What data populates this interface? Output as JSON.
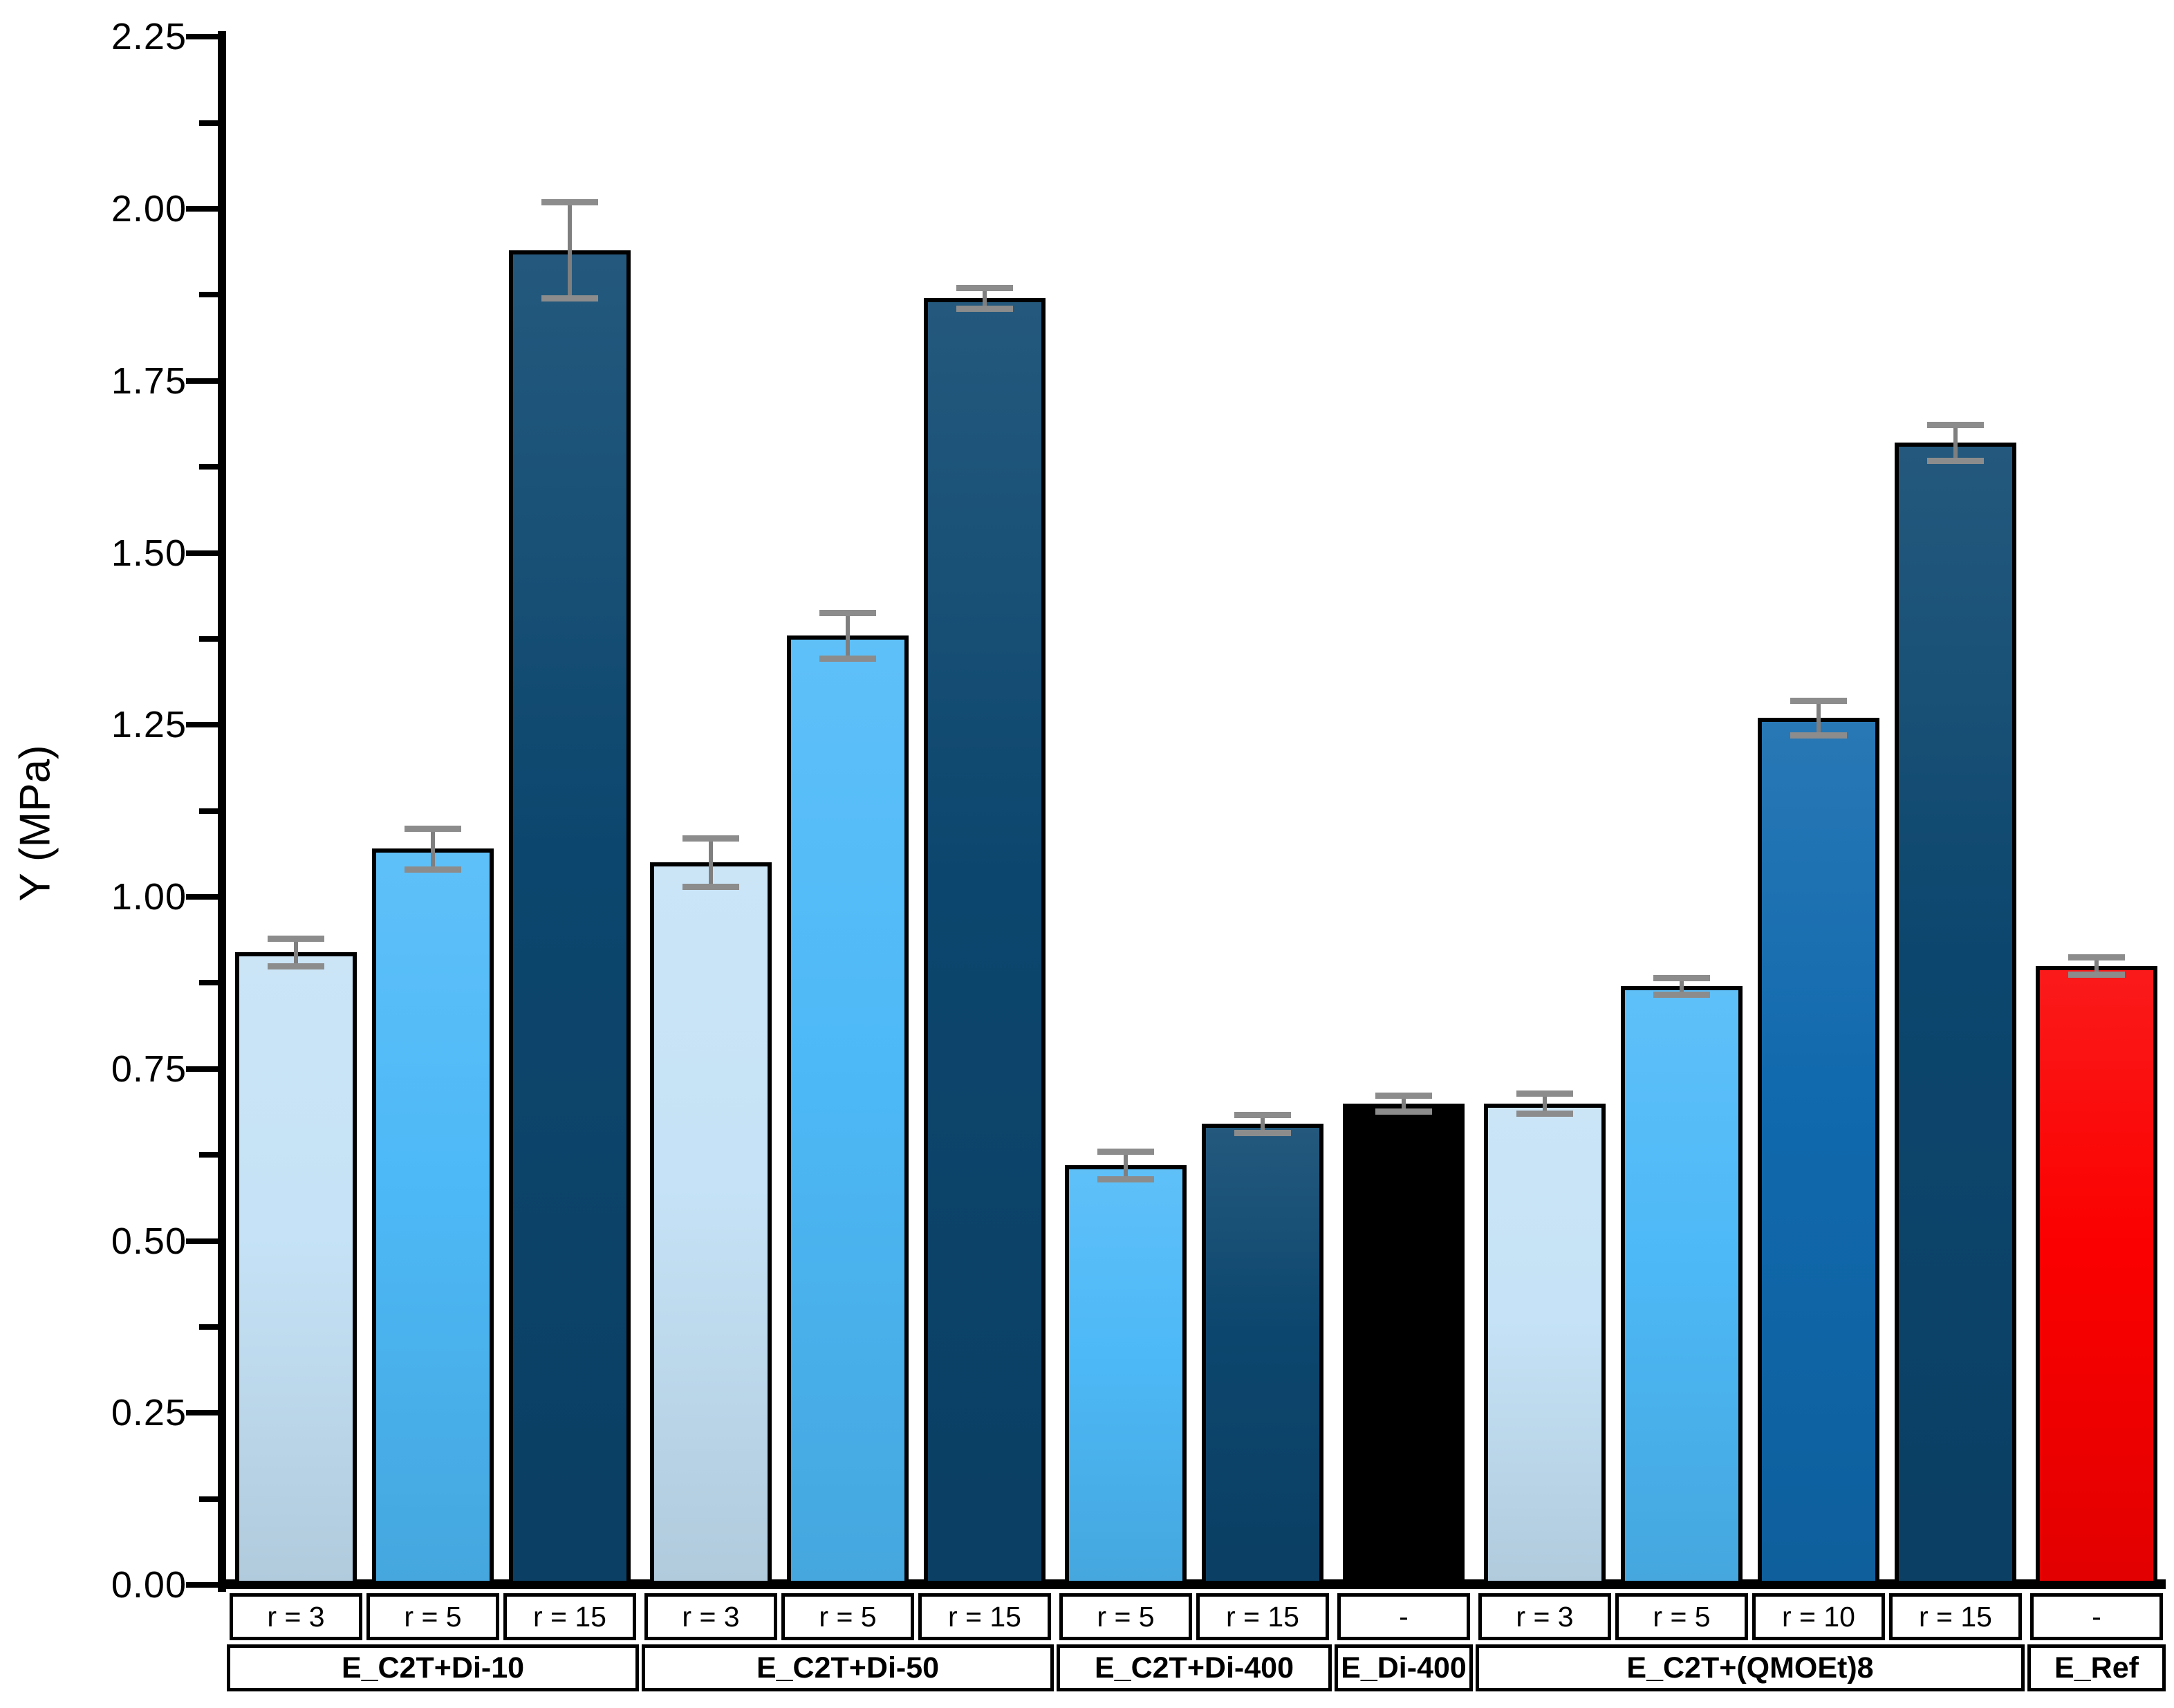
{
  "chart_data": {
    "type": "bar",
    "title": "",
    "xlabel": "",
    "ylabel": "Y (MPa)",
    "ylim": [
      0.0,
      2.25
    ],
    "ytick_step": 0.25,
    "yminor_step": 0.125,
    "ytick_format_decimals": 2,
    "grid": false,
    "legend": "none",
    "frame": "L-shaped (left and bottom axes only), ticks outward",
    "error_bar_color": "#7f7f7f",
    "bar_border_color": "#000000",
    "background_color": "#ffffff",
    "categories": [
      "r = 3",
      "r = 5",
      "r = 15",
      "r = 3",
      "r = 5",
      "r = 15",
      "r = 5",
      "r = 15",
      "-",
      "r = 3",
      "r = 5",
      "r = 10",
      "r = 15",
      "-"
    ],
    "groups": [
      {
        "label": "E_C2T+Di-10",
        "bars": [
          {
            "label": "r = 3",
            "value": 0.92,
            "error": 0.02,
            "color": "#c5e2f6"
          },
          {
            "label": "r = 5",
            "value": 1.07,
            "error": 0.03,
            "color": "#4db9f7"
          },
          {
            "label": "r = 15",
            "value": 1.94,
            "error": 0.07,
            "color": "#0c466e"
          }
        ]
      },
      {
        "label": "E_C2T+Di-50",
        "bars": [
          {
            "label": "r = 3",
            "value": 1.05,
            "error": 0.035,
            "color": "#c5e2f6"
          },
          {
            "label": "r = 5",
            "value": 1.38,
            "error": 0.033,
            "color": "#4db9f7"
          },
          {
            "label": "r = 15",
            "value": 1.87,
            "error": 0.015,
            "color": "#0c466e"
          }
        ]
      },
      {
        "label": "E_C2T+Di-400",
        "bars": [
          {
            "label": "r = 5",
            "value": 0.61,
            "error": 0.02,
            "color": "#4db9f7"
          },
          {
            "label": "r = 15",
            "value": 0.67,
            "error": 0.013,
            "color": "#0c466e"
          }
        ]
      },
      {
        "label": "E_Di-400",
        "bars": [
          {
            "label": "-",
            "value": 0.7,
            "error": 0.012,
            "color": "#000000"
          }
        ]
      },
      {
        "label": "E_C2T+(QMOEt)8",
        "bars": [
          {
            "label": "r = 3",
            "value": 0.7,
            "error": 0.015,
            "color": "#c5e2f6"
          },
          {
            "label": "r = 5",
            "value": 0.87,
            "error": 0.012,
            "color": "#4db9f7"
          },
          {
            "label": "r = 10",
            "value": 1.26,
            "error": 0.025,
            "color": "#1069ad"
          },
          {
            "label": "r = 15",
            "value": 1.66,
            "error": 0.026,
            "color": "#0c466e"
          }
        ]
      },
      {
        "label": "E_Ref",
        "bars": [
          {
            "label": "-",
            "value": 0.9,
            "error": 0.013,
            "color": "#fb0000"
          }
        ]
      }
    ]
  }
}
